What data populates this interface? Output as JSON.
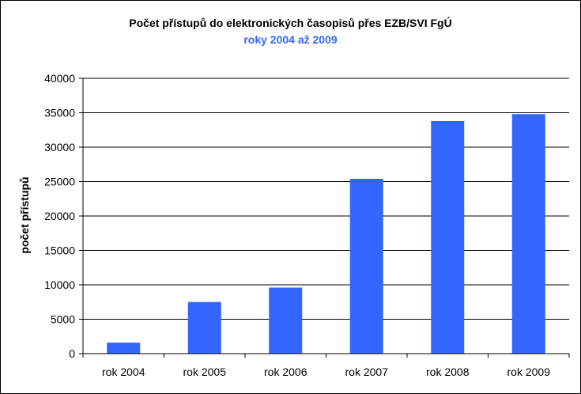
{
  "chart_data": {
    "type": "bar",
    "title": "Počet přístupů do elektronických časopisů přes EZB/SVI FgÚ",
    "subtitle": "roky 2004 až 2009",
    "xlabel": "",
    "ylabel": "počet přístupů",
    "categories": [
      "rok 2004",
      "rok 2005",
      "rok 2006",
      "rok 2007",
      "rok 2008",
      "rok 2009"
    ],
    "values": [
      1600,
      7500,
      9600,
      25400,
      33800,
      34800
    ],
    "ylim": [
      0,
      40000
    ],
    "yticks": [
      "0",
      "5000",
      "10000",
      "15000",
      "20000",
      "25000",
      "30000",
      "35000",
      "40000"
    ],
    "grid": true,
    "legend": "none",
    "colors": {
      "bar": "#3366ff",
      "subtitle": "#3366ff",
      "grid": "#000000"
    }
  }
}
